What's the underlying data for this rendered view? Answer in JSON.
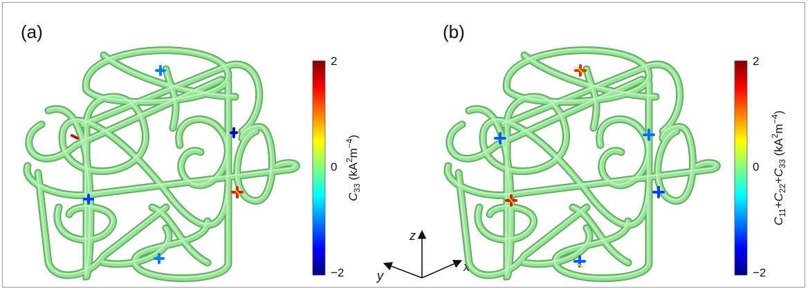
{
  "panels": [
    {
      "label": "(a)",
      "colorbar": {
        "title": [
          "C",
          "33",
          " (kA",
          "2",
          "m",
          "−4",
          ")"
        ],
        "ticks": [
          "2",
          "0",
          "−2"
        ]
      }
    },
    {
      "label": "(b)",
      "colorbar": {
        "title": [
          "C",
          "11",
          "+",
          "C",
          "22",
          "+",
          "C",
          "33",
          " (kA",
          "2",
          "m",
          "−4",
          ")"
        ],
        "ticks": [
          "2",
          "0",
          "−2"
        ]
      }
    }
  ],
  "axes": {
    "z": "z",
    "y": "y",
    "x": "x"
  }
}
